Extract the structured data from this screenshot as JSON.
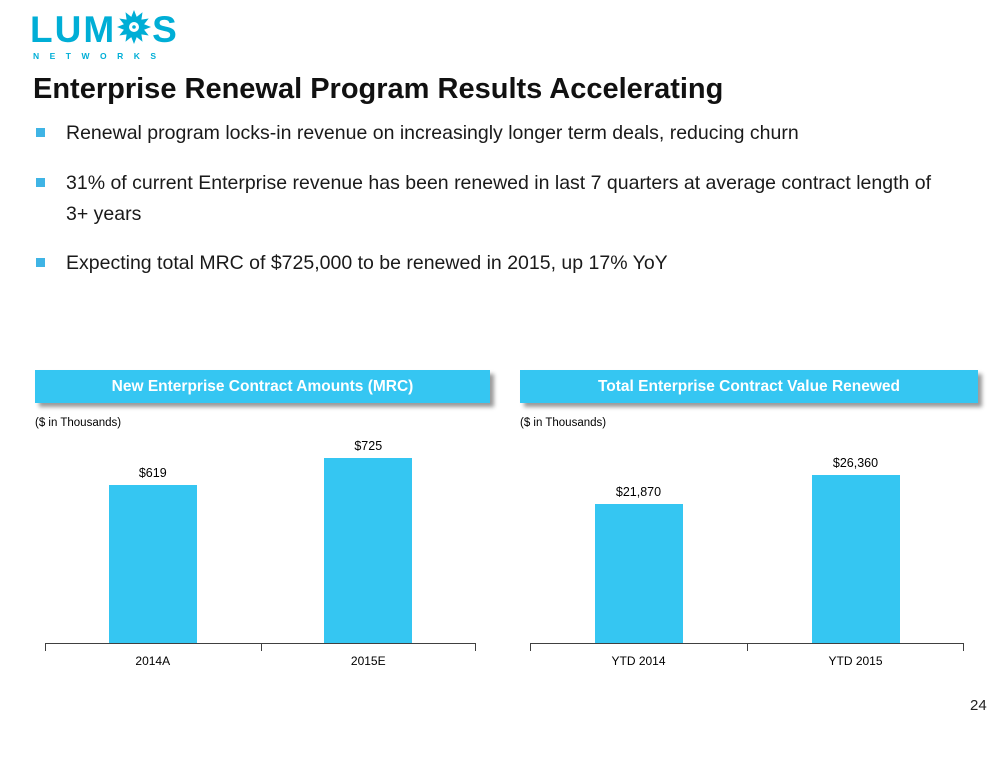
{
  "logo": {
    "brand_prefix": "LUM",
    "brand_suffix": "S",
    "subtext": "NETWORKS",
    "color": "#00AED6"
  },
  "title": "Enterprise Renewal Program Results Accelerating",
  "bullets": [
    {
      "text": "Renewal program locks-in revenue on increasingly longer term deals,  reducing churn"
    },
    {
      "text": "31% of current Enterprise revenue has been renewed in last 7 quarters at average contract length of 3+ years"
    },
    {
      "text": "Expecting total MRC of $725,000 to be renewed in 2015, up 17% YoY"
    }
  ],
  "colors": {
    "accent_cyan": "#35C6F2",
    "bullet_square": "#3FB4E5",
    "header_text": "#FFFFFF"
  },
  "page_number": "24",
  "chart_data": [
    {
      "type": "bar",
      "title": "New Enterprise Contract Amounts (MRC)",
      "subtitle": "($ in Thousands)",
      "categories": [
        "2014A",
        "2015E"
      ],
      "values": [
        619,
        725
      ],
      "data_labels": [
        "$619",
        "$725"
      ],
      "ylim": [
        0,
        800
      ],
      "xlabel": "",
      "ylabel": "",
      "grid": false,
      "legend": "none",
      "bar_color": "#35C6F2"
    },
    {
      "type": "bar",
      "title": "Total Enterprise Contract Value Renewed",
      "subtitle": "($ in Thousands)",
      "categories": [
        "YTD 2014",
        "YTD 2015"
      ],
      "values": [
        21870,
        26360
      ],
      "data_labels": [
        "$21,870",
        "$26,360"
      ],
      "ylim": [
        0,
        32000
      ],
      "xlabel": "",
      "ylabel": "",
      "grid": false,
      "legend": "none",
      "bar_color": "#35C6F2"
    }
  ]
}
